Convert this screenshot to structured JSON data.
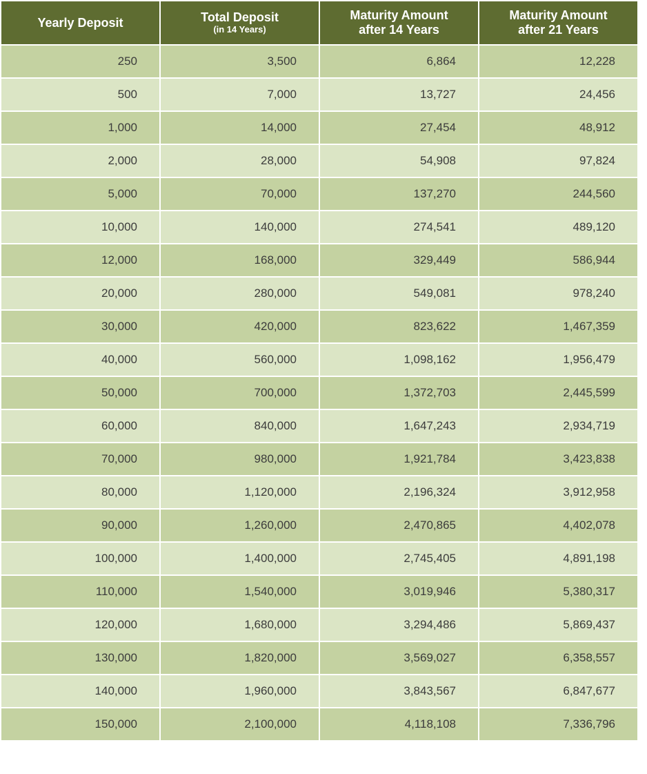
{
  "table": {
    "headers": [
      {
        "line1": "Yearly Deposit",
        "line2": ""
      },
      {
        "line1": "Total Deposit",
        "line2": "(in 14 Years)"
      },
      {
        "line1": "Maturity Amount",
        "line2": "after 14 Years"
      },
      {
        "line1": "Maturity Amount",
        "line2": "after 21 Years"
      }
    ],
    "rows": [
      [
        "250",
        "3,500",
        "6,864",
        "12,228"
      ],
      [
        "500",
        "7,000",
        "13,727",
        "24,456"
      ],
      [
        "1,000",
        "14,000",
        "27,454",
        "48,912"
      ],
      [
        "2,000",
        "28,000",
        "54,908",
        "97,824"
      ],
      [
        "5,000",
        "70,000",
        "137,270",
        "244,560"
      ],
      [
        "10,000",
        "140,000",
        "274,541",
        "489,120"
      ],
      [
        "12,000",
        "168,000",
        "329,449",
        "586,944"
      ],
      [
        "20,000",
        "280,000",
        "549,081",
        "978,240"
      ],
      [
        "30,000",
        "420,000",
        "823,622",
        "1,467,359"
      ],
      [
        "40,000",
        "560,000",
        "1,098,162",
        "1,956,479"
      ],
      [
        "50,000",
        "700,000",
        "1,372,703",
        "2,445,599"
      ],
      [
        "60,000",
        "840,000",
        "1,647,243",
        "2,934,719"
      ],
      [
        "70,000",
        "980,000",
        "1,921,784",
        "3,423,838"
      ],
      [
        "80,000",
        "1,120,000",
        "2,196,324",
        "3,912,958"
      ],
      [
        "90,000",
        "1,260,000",
        "2,470,865",
        "4,402,078"
      ],
      [
        "100,000",
        "1,400,000",
        "2,745,405",
        "4,891,198"
      ],
      [
        "110,000",
        "1,540,000",
        "3,019,946",
        "5,380,317"
      ],
      [
        "120,000",
        "1,680,000",
        "3,294,486",
        "5,869,437"
      ],
      [
        "130,000",
        "1,820,000",
        "3,569,027",
        "6,358,557"
      ],
      [
        "140,000",
        "1,960,000",
        "3,843,567",
        "6,847,677"
      ],
      [
        "150,000",
        "2,100,000",
        "4,118,108",
        "7,336,796"
      ]
    ]
  },
  "colors": {
    "header_bg": "#5e6c31",
    "header_text": "#ffffff",
    "row_dark": "#c4d2a1",
    "row_light": "#dbe5c5",
    "body_text": "#3c3c3c"
  }
}
